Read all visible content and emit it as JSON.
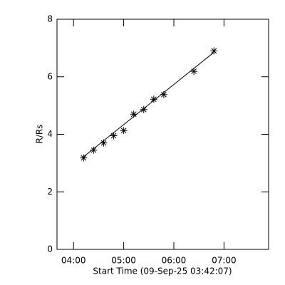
{
  "chart_data": {
    "type": "scatter",
    "x_label": "Start Time (09-Sep-25 03:42:07)",
    "y_label": "R/Rs",
    "x": [
      4.2,
      4.4,
      4.6,
      4.8,
      5.0,
      5.2,
      5.4,
      5.6,
      5.8,
      6.4,
      6.8
    ],
    "values": [
      3.18,
      3.45,
      3.7,
      3.95,
      4.13,
      4.7,
      4.86,
      5.22,
      5.38,
      6.19,
      6.9
    ],
    "color": "#000000",
    "fit_line": {
      "x": [
        4.2,
        6.8
      ],
      "values": [
        3.22,
        6.85
      ]
    },
    "xlim": [
      3.67,
      7.89
    ],
    "ylim": [
      0,
      8
    ],
    "xticks": [
      {
        "value": 4,
        "label": "04:00"
      },
      {
        "value": 5,
        "label": "05:00"
      },
      {
        "value": 6,
        "label": "06:00"
      },
      {
        "value": 7,
        "label": "07:00"
      }
    ],
    "yticks": [
      0,
      2,
      4,
      6,
      8
    ]
  }
}
